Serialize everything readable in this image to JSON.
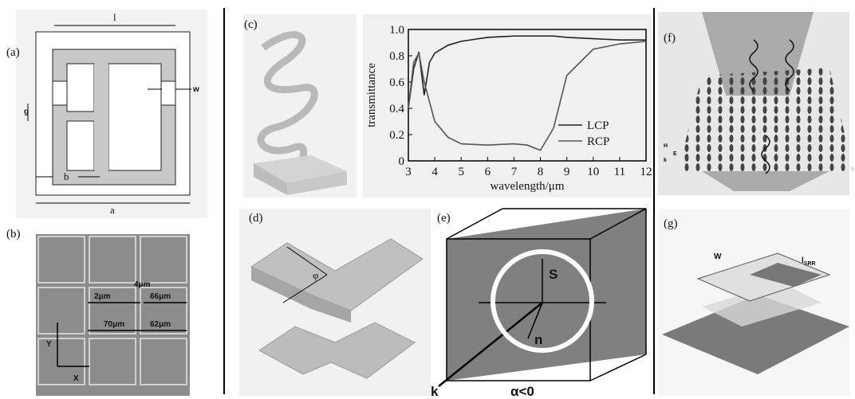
{
  "panels": {
    "a": {
      "label": "(a)",
      "texts": [
        "l",
        "w",
        "g",
        "b",
        "a"
      ]
    },
    "b": {
      "label": "(b)",
      "texts": [
        "4μm",
        "2μm",
        "66μm",
        "70μm",
        "62μm",
        "Y",
        "X"
      ]
    },
    "c": {
      "label": "(c)"
    },
    "d": {
      "label": "(d)",
      "texts": [
        "φ"
      ]
    },
    "e": {
      "label": "(e)",
      "texts": [
        "S",
        "n",
        "k",
        "α<0"
      ]
    },
    "f": {
      "label": "(f)",
      "texts": [
        "H",
        "k",
        "E"
      ]
    },
    "g": {
      "label": "(g)",
      "texts": [
        "W",
        "l",
        "SRR"
      ]
    }
  },
  "chart_data": {
    "type": "line",
    "xlabel": "wavelength/μm",
    "ylabel": "transmittance",
    "x": [
      3,
      3.2,
      3.4,
      3.6,
      3.8,
      4,
      4.5,
      5,
      6,
      7,
      7.5,
      8,
      8.5,
      9,
      10,
      11,
      12
    ],
    "series": [
      {
        "name": "LCP",
        "color": "#222222",
        "values": [
          0.4,
          0.7,
          0.83,
          0.5,
          0.75,
          0.82,
          0.88,
          0.91,
          0.94,
          0.95,
          0.95,
          0.95,
          0.95,
          0.94,
          0.93,
          0.92,
          0.92
        ]
      },
      {
        "name": "RCP",
        "color": "#555555",
        "values": [
          0.4,
          0.75,
          0.82,
          0.6,
          0.45,
          0.3,
          0.18,
          0.13,
          0.12,
          0.13,
          0.12,
          0.08,
          0.25,
          0.65,
          0.85,
          0.89,
          0.91
        ]
      }
    ],
    "xlim": [
      3,
      12
    ],
    "xticks": [
      3,
      4,
      5,
      6,
      7,
      8,
      9,
      10,
      11,
      12
    ],
    "ylim": [
      0,
      1
    ],
    "yticks": [
      0,
      0.2,
      0.4,
      0.6,
      0.8,
      {
        "value": 1,
        "label": "1.0"
      }
    ],
    "legend": "lower right"
  }
}
